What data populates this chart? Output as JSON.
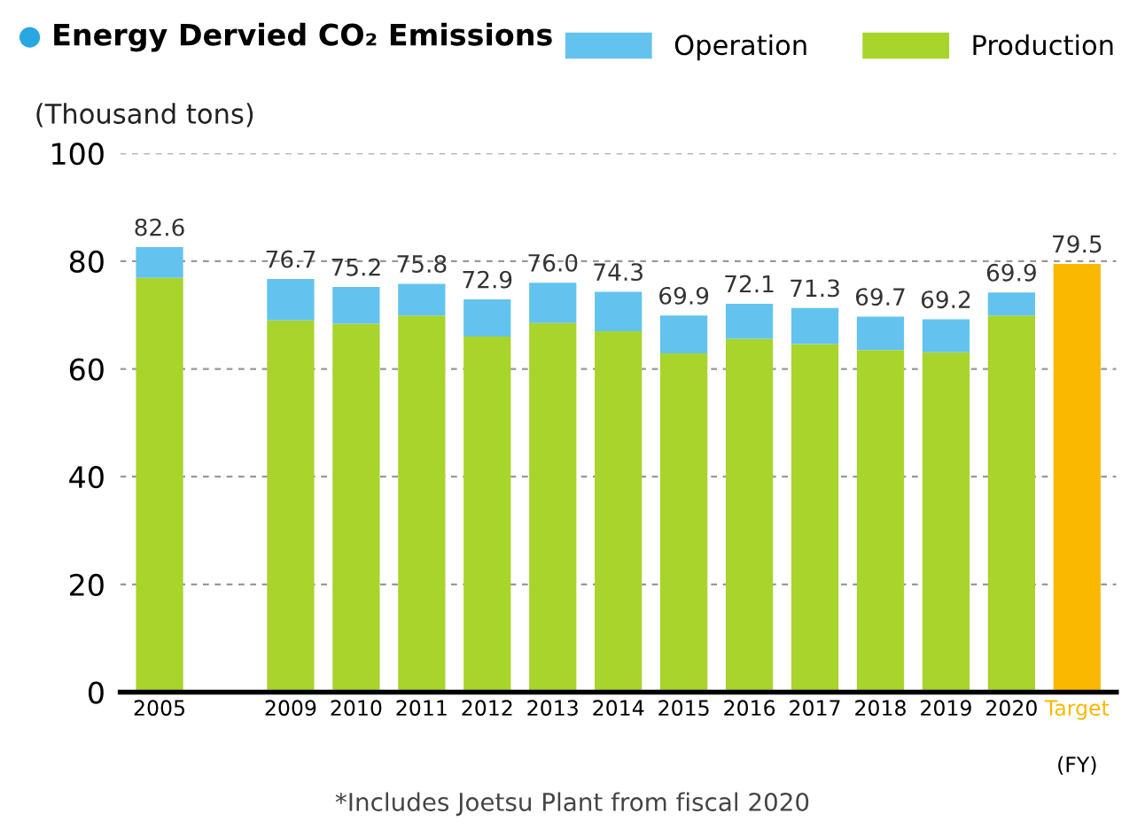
{
  "chart_data": {
    "type": "bar",
    "title": "Energy Dervied CO₂ Emissions",
    "ylabel": "(Thousand tons)",
    "xlabel": "(FY)",
    "categories": [
      "2005",
      null,
      "2009",
      "2010",
      "2011",
      "2012",
      "2013",
      "2014",
      "2015",
      "2016",
      "2017",
      "2018",
      "2019",
      "2020",
      "Target"
    ],
    "stacked": true,
    "series": [
      {
        "name": "Production",
        "color": "#a8d42c",
        "values": [
          76.9,
          null,
          69.0,
          68.4,
          69.9,
          66.0,
          68.5,
          67.0,
          62.9,
          65.6,
          64.6,
          63.5,
          63.1,
          69.9,
          null
        ]
      },
      {
        "name": "Operation",
        "color": "#63c3ee",
        "values": [
          5.7,
          null,
          7.7,
          6.8,
          5.9,
          6.9,
          7.5,
          7.3,
          7.0,
          6.5,
          6.7,
          6.2,
          6.1,
          4.3,
          null
        ]
      },
      {
        "color": "#fbb800",
        "values": [
          null,
          null,
          null,
          null,
          null,
          null,
          null,
          null,
          null,
          null,
          null,
          null,
          null,
          null,
          79.5
        ]
      }
    ],
    "totals": [
      "82.6",
      null,
      "76.7",
      "75.2",
      "75.8",
      "72.9",
      "76.0",
      "74.3",
      "69.9",
      "72.1",
      "71.3",
      "69.7",
      "69.2",
      null,
      "79.5"
    ],
    "ylim": [
      0,
      100
    ],
    "yticks": [
      0,
      20,
      40,
      60,
      80,
      100
    ],
    "grid": "y",
    "legend": "top right",
    "annotations": [
      {
        "text": "69.9",
        "x": "2020",
        "y": 74.2
      },
      "*Includes Joetsu Plant from fiscal 2020"
    ]
  }
}
